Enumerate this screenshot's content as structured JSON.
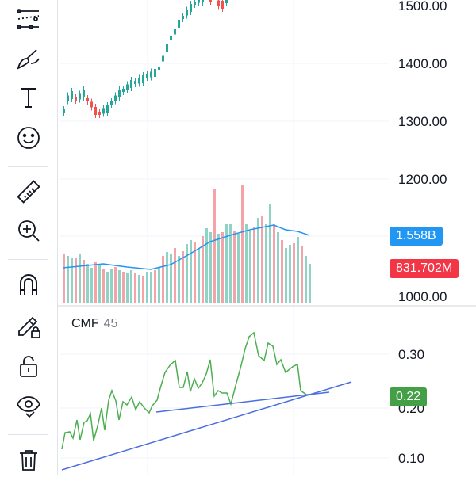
{
  "toolbar": {
    "items": [
      {
        "name": "trend-line-tools-icon"
      },
      {
        "name": "brush-icon"
      },
      {
        "name": "text-icon"
      },
      {
        "name": "emoji-icon"
      },
      {
        "name": "ruler-icon"
      },
      {
        "name": "zoom-in-icon"
      },
      {
        "name": "magnet-icon"
      },
      {
        "name": "lock-drawing-icon"
      },
      {
        "name": "lock-icon"
      },
      {
        "name": "eye-icon"
      },
      {
        "name": "trash-icon"
      }
    ]
  },
  "price_axis": {
    "labels": [
      "1500.00",
      "1400.00",
      "1300.00",
      "1200.00",
      "1000.00"
    ]
  },
  "volume": {
    "ma_badge": "1.558B",
    "last_badge": "831.702M",
    "ma_color": "#2196f3",
    "last_color": "#f23645"
  },
  "cmf": {
    "title": "CMF",
    "period": "45",
    "axis_labels": [
      "0.30",
      "0.20",
      "0.10"
    ],
    "value_badge": "0.22",
    "line_color": "#4caf50",
    "badge_color": "#43a047",
    "trendline_color": "#4a6ee0"
  },
  "colors": {
    "up": "#26a69a",
    "down": "#ef5350",
    "volume_up": "#8fd3c7",
    "volume_down": "#f4a3a8",
    "grid": "#f0f3fa"
  }
}
